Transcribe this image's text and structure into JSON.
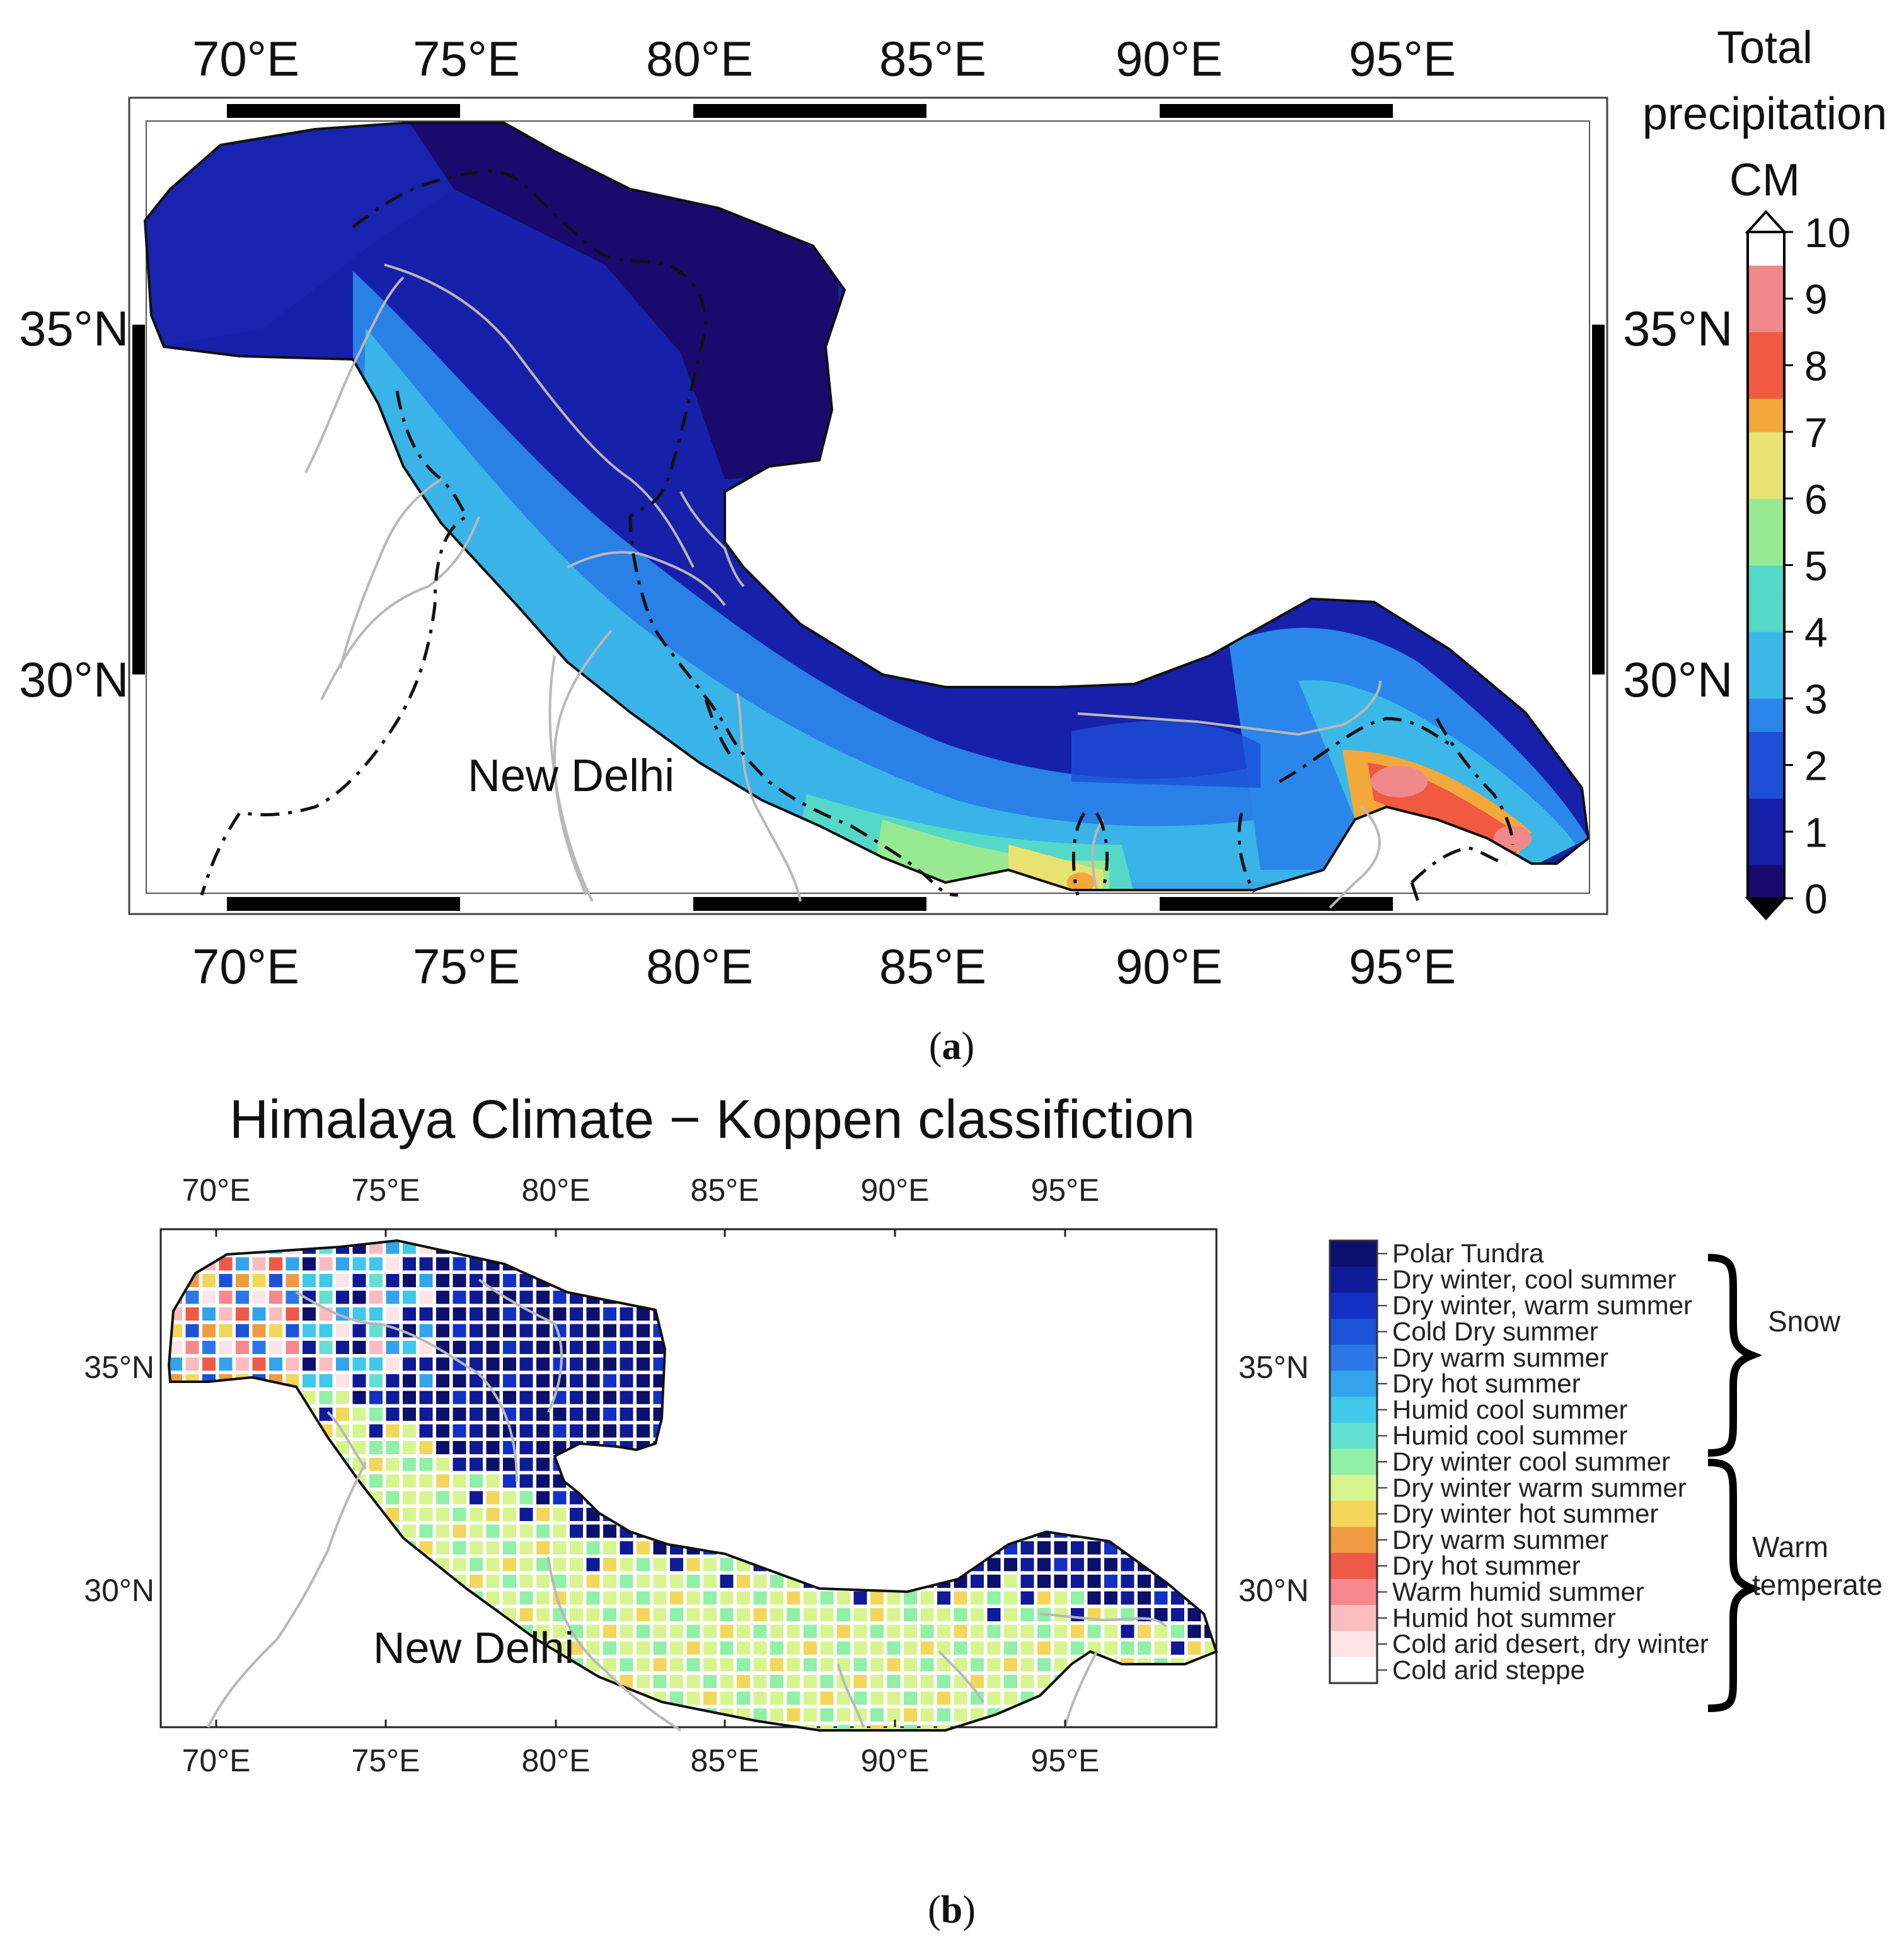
{
  "panel_a": {
    "lon_ticks": [
      "70°E",
      "75°E",
      "80°E",
      "85°E",
      "90°E",
      "95°E"
    ],
    "lat_ticks": [
      "35°N",
      "30°N"
    ],
    "colorbar_title": [
      "Total",
      "precipitation",
      "CM"
    ],
    "colorbar_labels": [
      "10",
      "9",
      "8",
      "7",
      "6",
      "5",
      "4",
      "3",
      "2",
      "1",
      "0"
    ],
    "city_label": "New Delhi",
    "caption_open": "(",
    "caption_letter": "a",
    "caption_close": ")"
  },
  "panel_b": {
    "title": "Himalaya Climate − Koppen classifiction",
    "lon_ticks": [
      "70°E",
      "75°E",
      "80°E",
      "85°E",
      "90°E",
      "95°E"
    ],
    "lat_ticks": [
      "35°N",
      "30°N"
    ],
    "city_label": "New Delhi",
    "caption_open": "(",
    "caption_letter": "b",
    "caption_close": ")",
    "legend": [
      {
        "label": "Polar Tundra",
        "color": "#0c0f6b"
      },
      {
        "label": "Dry winter, cool summer",
        "color": "#0e1a96"
      },
      {
        "label": "Dry winter, warm summer",
        "color": "#1330c4"
      },
      {
        "label": "Cold Dry summer",
        "color": "#1b52d8"
      },
      {
        "label": "Dry warm summer",
        "color": "#2a78e6"
      },
      {
        "label": "Dry hot summer",
        "color": "#33a3ee"
      },
      {
        "label": "Humid cool summer",
        "color": "#3fc8ea"
      },
      {
        "label": "Humid cool summer",
        "color": "#62e0d0"
      },
      {
        "label": "Dry winter cool summer",
        "color": "#8ff0a6"
      },
      {
        "label": "Dry winter warm summer",
        "color": "#d8f48e"
      },
      {
        "label": "Dry winter hot summer",
        "color": "#f2d75a"
      },
      {
        "label": "Dry warm summer",
        "color": "#f09a42"
      },
      {
        "label": "Dry hot summer",
        "color": "#ee5a48"
      },
      {
        "label": "Warm humid summer",
        "color": "#f7888e"
      },
      {
        "label": "Humid hot summer",
        "color": "#fbbcc0"
      },
      {
        "label": "Cold arid desert, dry winter",
        "color": "#fde4e6"
      },
      {
        "label": "Cold arid steppe",
        "color": "#ffffff"
      }
    ],
    "groups": [
      {
        "label_lines": [
          "Snow"
        ]
      },
      {
        "label_lines": [
          "Warm",
          "temperate"
        ]
      }
    ]
  },
  "colors": {
    "precip_scale": [
      "#1a0a6e",
      "#1620a8",
      "#1d4fd8",
      "#2a86ea",
      "#3cb8e8",
      "#55d8c8",
      "#98ea92",
      "#e8e272",
      "#f3a83c",
      "#ef5a40",
      "#f08a8a",
      "#ffffff"
    ],
    "river": "#b8b8b8"
  }
}
